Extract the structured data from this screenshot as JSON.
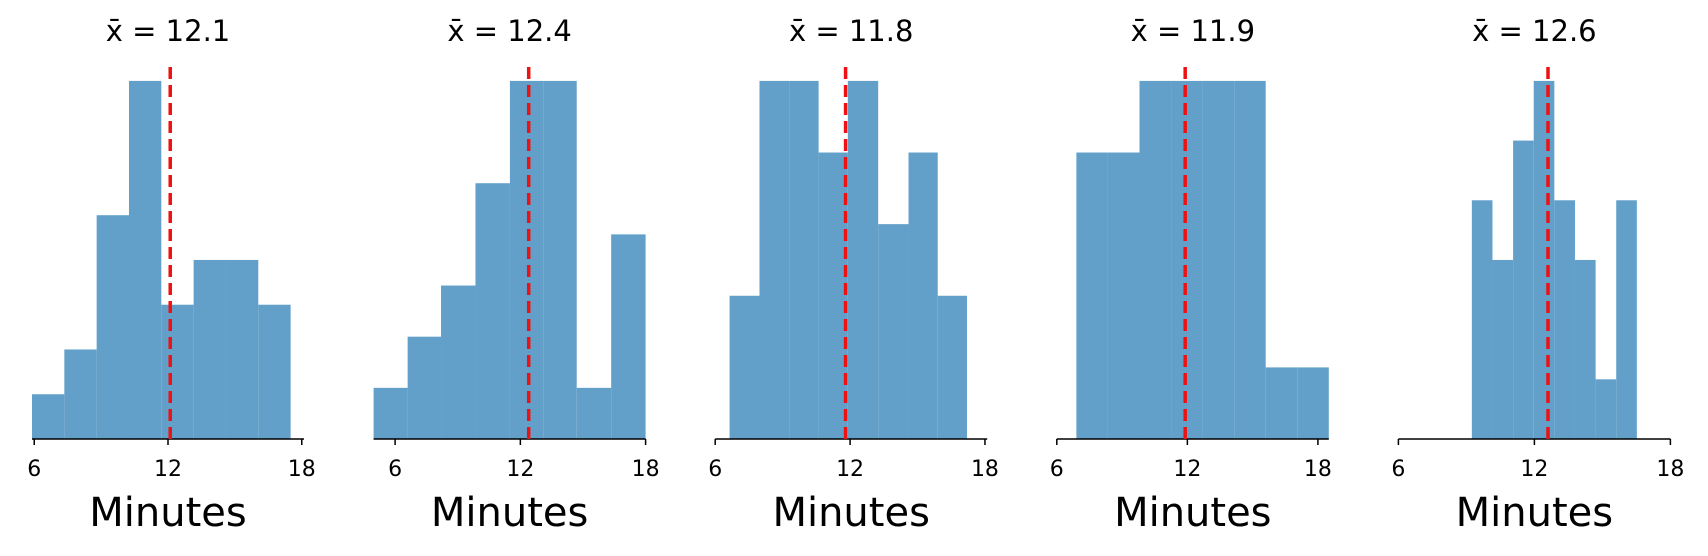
{
  "chart_data": [
    {
      "type": "histogram",
      "title": "x̄ = 12.1",
      "xlabel": "Minutes",
      "bins": [
        5.9,
        7.35,
        8.8,
        10.25,
        11.7,
        13.15,
        14.6,
        16.05,
        17.5
      ],
      "counts": [
        1,
        2,
        5,
        8,
        3,
        4,
        4,
        3
      ],
      "color": "#62a0ca",
      "mean": 12.1,
      "mean_color": "#ee1111",
      "xlim": [
        5.9,
        18.1
      ],
      "ylim": [
        0,
        8.4
      ],
      "xticks": [
        6,
        12,
        18
      ]
    },
    {
      "type": "histogram",
      "title": "x̄ = 12.4",
      "xlabel": "Minutes",
      "bins": [
        4.97,
        6.6,
        8.2,
        9.85,
        11.5,
        13.1,
        14.7,
        16.35,
        18.0
      ],
      "counts": [
        1,
        2,
        3,
        5,
        7,
        7,
        1,
        4
      ],
      "color": "#62a0ca",
      "mean": 12.4,
      "mean_color": "#ee1111",
      "xlim": [
        4.97,
        18.0
      ],
      "ylim": [
        0,
        7.35
      ],
      "xticks": [
        6,
        12,
        18
      ]
    },
    {
      "type": "histogram",
      "title": "x̄ = 11.8",
      "xlabel": "Minutes",
      "bins": [
        6.64,
        7.97,
        9.3,
        10.6,
        11.9,
        13.25,
        14.6,
        15.9,
        17.2
      ],
      "counts": [
        2,
        5,
        5,
        4,
        5,
        3,
        4,
        2
      ],
      "color": "#62a0ca",
      "mean": 11.8,
      "mean_color": "#ee1111",
      "xlim": [
        6,
        18.1
      ],
      "ylim": [
        0,
        5.25
      ],
      "xticks": [
        6,
        12,
        18
      ]
    },
    {
      "type": "histogram",
      "title": "x̄ = 11.9",
      "xlabel": "Minutes",
      "bins": [
        6.9,
        8.35,
        9.8,
        11.25,
        12.7,
        14.15,
        15.6,
        17.05,
        18.5
      ],
      "counts": [
        4,
        4,
        5,
        5,
        5,
        5,
        1,
        1
      ],
      "color": "#62a0ca",
      "mean": 11.9,
      "mean_color": "#ee1111",
      "xlim": [
        6,
        18.5
      ],
      "ylim": [
        0,
        5.25
      ],
      "xticks": [
        6,
        12,
        18
      ]
    },
    {
      "type": "histogram",
      "title": "x̄ = 12.6",
      "xlabel": "Minutes",
      "bins": [
        9.24,
        10.15,
        11.06,
        11.97,
        12.88,
        13.79,
        14.7,
        15.61,
        16.52
      ],
      "counts": [
        4,
        3,
        5,
        6,
        4,
        3,
        1,
        4
      ],
      "color": "#62a0ca",
      "mean": 12.6,
      "mean_color": "#ee1111",
      "xlim": [
        6,
        18
      ],
      "ylim": [
        0,
        6.3
      ],
      "xticks": [
        6,
        12,
        18
      ]
    }
  ]
}
